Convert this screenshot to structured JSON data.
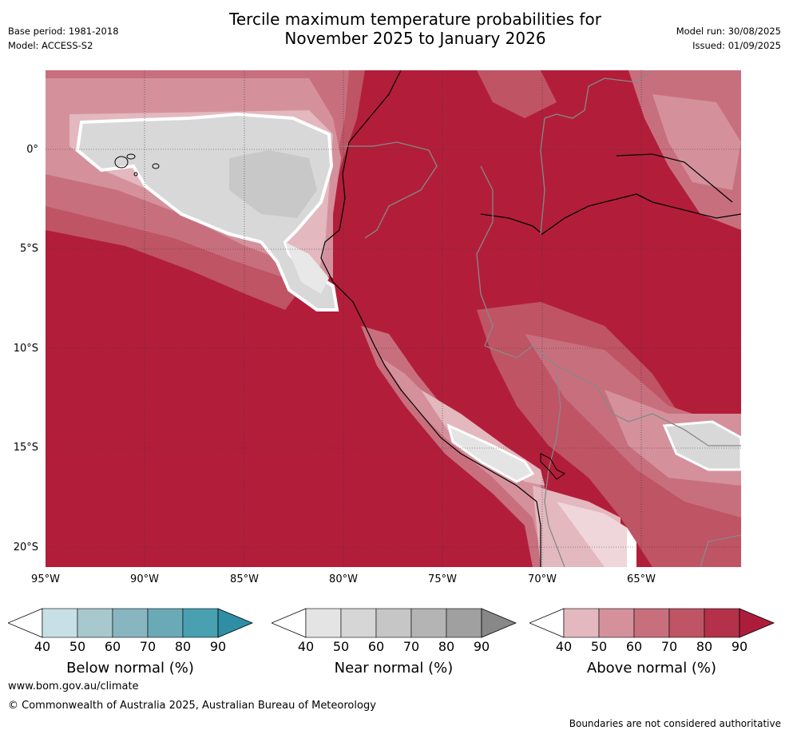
{
  "header": {
    "title_line1": "Tercile maximum temperature probabilities for",
    "title_line2": "November 2025 to January 2026",
    "base_period": "Base period: 1981-2018",
    "model": "Model: ACCESS-S2",
    "model_run": "Model run: 30/08/2025",
    "issued": "Issued: 01/09/2025"
  },
  "map": {
    "lat_labels": [
      "0°",
      "5°S",
      "10°S",
      "15°S",
      "20°S"
    ],
    "lon_labels": [
      "95°W",
      "90°W",
      "85°W",
      "80°W",
      "75°W",
      "70°W",
      "65°W"
    ],
    "dominant_category": "Above normal",
    "dominant_color": "#b21e3a"
  },
  "colorbars": [
    {
      "label": "Below normal (%)",
      "ticks": [
        "40",
        "50",
        "60",
        "70",
        "80",
        "90"
      ],
      "colors": [
        "#c7e0e5",
        "#a7c8cd",
        "#88b6c0",
        "#6aa9b6",
        "#48a0b1",
        "#2e8ea4"
      ]
    },
    {
      "label": "Near normal (%)",
      "ticks": [
        "40",
        "50",
        "60",
        "70",
        "80",
        "90"
      ],
      "colors": [
        "#e4e4e4",
        "#d6d6d6",
        "#c6c6c6",
        "#b4b4b4",
        "#a0a0a0",
        "#888888"
      ]
    },
    {
      "label": "Above normal (%)",
      "ticks": [
        "40",
        "50",
        "60",
        "70",
        "80",
        "90"
      ],
      "colors": [
        "#e3b8bf",
        "#d4919c",
        "#c86f7e",
        "#bf5465",
        "#b4314a",
        "#ad1d3b"
      ]
    }
  ],
  "footer": {
    "url": "www.bom.gov.au/climate",
    "copyright": "© Commonwealth of Australia 2025, Australian Bureau of Meteorology",
    "note": "Boundaries are not considered authoritative"
  }
}
